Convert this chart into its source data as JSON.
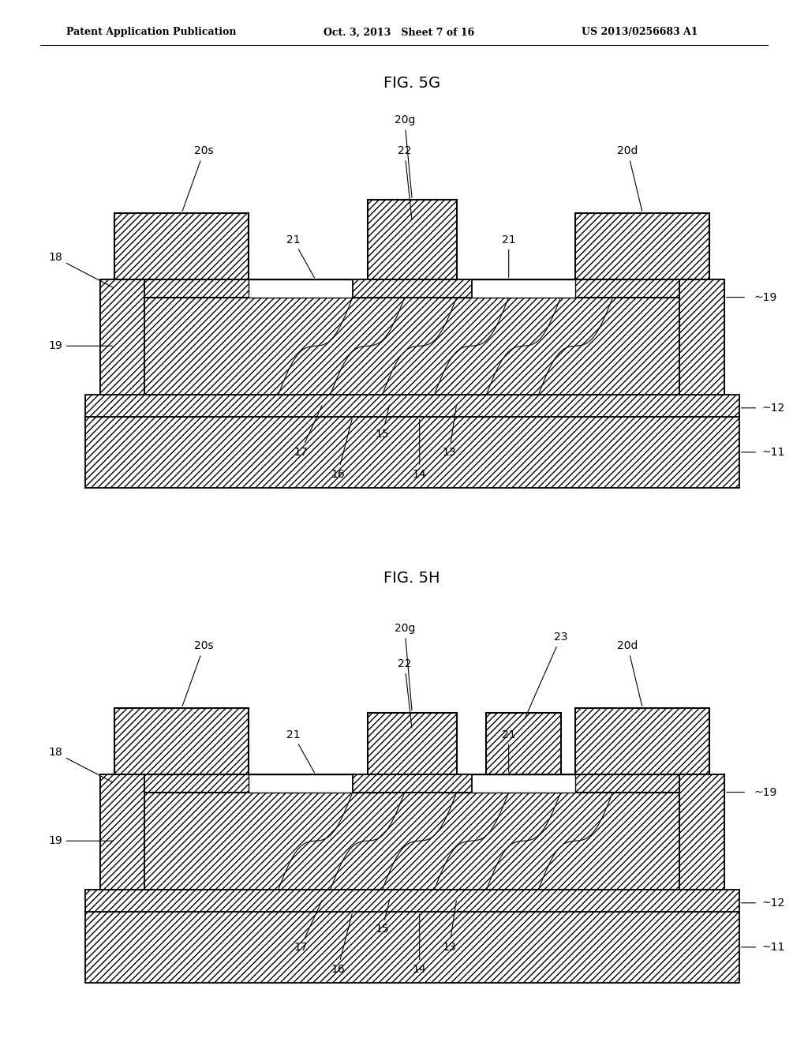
{
  "bg_color": "#ffffff",
  "header_left": "Patent Application Publication",
  "header_mid": "Oct. 3, 2013   Sheet 7 of 16",
  "header_right": "US 2013/0256683 A1",
  "fig5g_title": "FIG. 5G",
  "fig5h_title": "FIG. 5H",
  "lc": "#000000",
  "hatch_diag": "////",
  "hatch_dense_diag": "\\\\\\\\",
  "label_fontsize": 10,
  "title_fontsize": 14
}
